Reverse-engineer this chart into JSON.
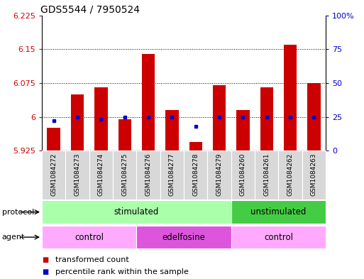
{
  "title": "GDS5544 / 7950524",
  "samples": [
    "GSM1084272",
    "GSM1084273",
    "GSM1084274",
    "GSM1084275",
    "GSM1084276",
    "GSM1084277",
    "GSM1084278",
    "GSM1084279",
    "GSM1084260",
    "GSM1084261",
    "GSM1084262",
    "GSM1084263"
  ],
  "transformed_count": [
    5.975,
    6.05,
    6.065,
    5.995,
    6.14,
    6.015,
    5.945,
    6.07,
    6.015,
    6.065,
    6.16,
    6.075
  ],
  "percentile_rank": [
    22,
    25,
    23,
    25,
    25,
    25,
    18,
    25,
    25,
    25,
    25,
    25
  ],
  "bar_bottom": 5.925,
  "ylim_left": [
    5.925,
    6.225
  ],
  "ylim_right": [
    0,
    100
  ],
  "yticks_left": [
    5.925,
    6.0,
    6.075,
    6.15,
    6.225
  ],
  "yticks_left_labels": [
    "5.925",
    "6",
    "6.075",
    "6.15",
    "6.225"
  ],
  "yticks_right": [
    0,
    25,
    50,
    75,
    100
  ],
  "yticks_right_labels": [
    "0",
    "25",
    "50",
    "75",
    "100%"
  ],
  "hlines": [
    6.0,
    6.075,
    6.15
  ],
  "bar_color": "#cc0000",
  "dot_color": "#0000cc",
  "protocol_groups": [
    {
      "start": 0,
      "end": 8,
      "label": "stimulated",
      "color": "#aaffaa"
    },
    {
      "start": 8,
      "end": 12,
      "label": "unstimulated",
      "color": "#44cc44"
    }
  ],
  "agent_groups": [
    {
      "start": 0,
      "end": 4,
      "label": "control",
      "color": "#ffaaff"
    },
    {
      "start": 4,
      "end": 8,
      "label": "edelfosine",
      "color": "#dd55dd"
    },
    {
      "start": 8,
      "end": 12,
      "label": "control",
      "color": "#ffaaff"
    }
  ],
  "bar_width": 0.55,
  "left_axis_color": "#cc0000",
  "right_axis_color": "#0000cc",
  "title_fontsize": 10,
  "tick_fontsize": 8,
  "label_fontsize": 6.5,
  "row_fontsize": 8.5,
  "legend_fontsize": 8
}
